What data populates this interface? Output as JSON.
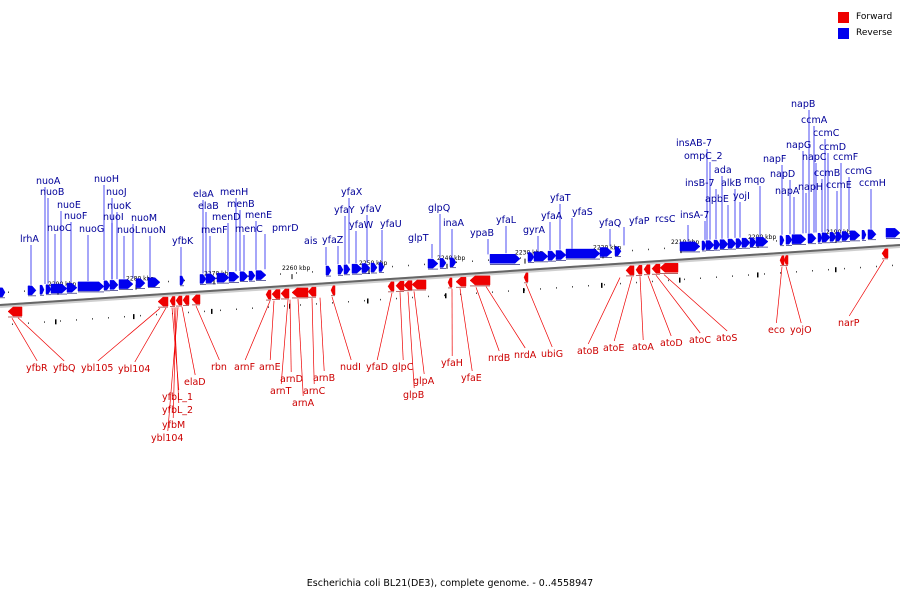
{
  "legend": {
    "forward_label": "Forward",
    "reverse_label": "Reverse",
    "forward_color": "#ee0000",
    "reverse_color": "#0000ee"
  },
  "caption": "Escherichia coli BL21(DE3), complete genome. - 0..4558947",
  "kbp_marks": [
    "2290 kbp",
    "2280 kbp",
    "2270 kbp",
    "2260 kbp",
    "2250 kbp",
    "2240 kbp",
    "2230 kbp",
    "2220 kbp",
    "2210 kbp",
    "2200 kbp",
    "2190 kbp"
  ],
  "reverse_labels": [
    "lrhA",
    "nuoA",
    "nuoB",
    "nuoC",
    "nuoE",
    "nuoF",
    "nuoG",
    "nuoH",
    "nuoJ",
    "nuoI",
    "nuoK",
    "nuoL",
    "nuoM",
    "nuoN",
    "yfbK",
    "elaA",
    "elaB",
    "menF",
    "menH",
    "menB",
    "menD",
    "menC",
    "menE",
    "pmrD",
    "ais",
    "yfaZ",
    "yfaY",
    "yfaX",
    "yfaW",
    "yfaV",
    "yfaU",
    "glpT",
    "glpQ",
    "inaA",
    "ypaB",
    "yfaL",
    "gyrA",
    "yfaA",
    "yfaT",
    "yfaS",
    "yfaQ",
    "yfaP",
    "rcsC",
    "insA-7",
    "insAB-7",
    "ompC_2",
    "insB-7",
    "ada",
    "apbE",
    "alkB",
    "yojI",
    "mqo",
    "napF",
    "napD",
    "napA",
    "napG",
    "napH",
    "napB",
    "ccmA",
    "napC",
    "ccmB",
    "ccmC",
    "ccmD",
    "ccmE",
    "ccmF",
    "ccmG",
    "ccmH"
  ],
  "forward_labels": [
    "yfbR",
    "yfbQ",
    "ybl105",
    "ybl104",
    "elaD",
    "yfbL_1",
    "yfbL_2",
    "yfbM",
    "ybl104",
    "rbn",
    "arnF",
    "arnE",
    "arnT",
    "arnD",
    "arnA",
    "arnC",
    "arnB",
    "nudI",
    "yfaD",
    "glpC",
    "glpB",
    "glpA",
    "yfaH",
    "yfaE",
    "nrdB",
    "nrdA",
    "ubiG",
    "atoB",
    "atoE",
    "atoA",
    "atoD",
    "atoC",
    "atoS",
    "eco",
    "yojO",
    "narP"
  ]
}
